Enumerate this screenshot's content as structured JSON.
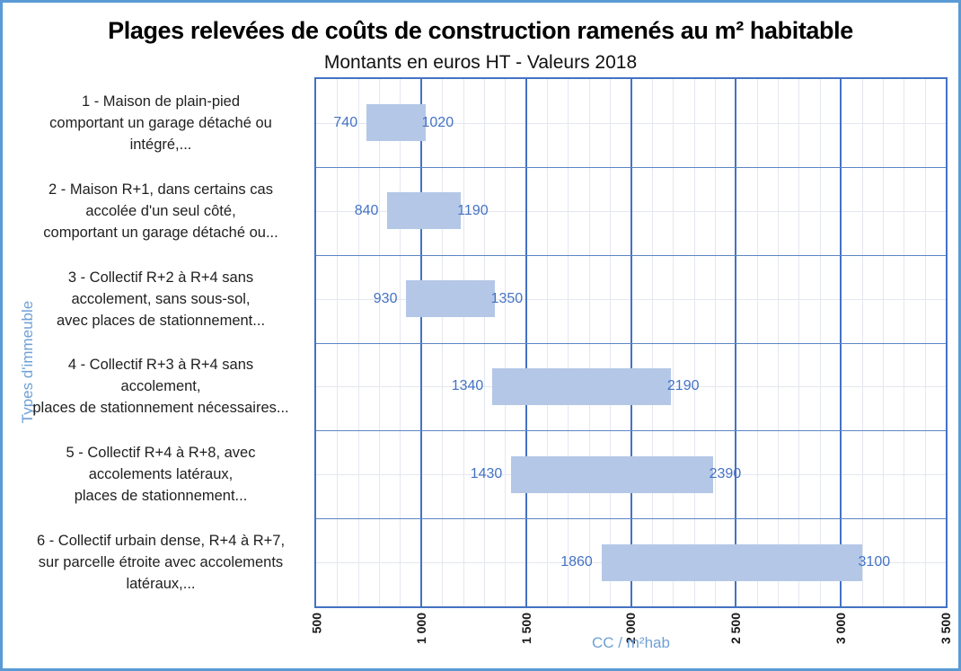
{
  "chart": {
    "title": "Plages relevées de coûts de construction ramenés au m² habitable",
    "subtitle": "Montants en euros HT - Valeurs 2018",
    "x_axis_title": "CC / m²hab",
    "y_axis_title": "Types d'immeuble"
  },
  "chart_data": {
    "type": "bar",
    "subtype": "horizontal-floating-range",
    "title": "Plages relevées de coûts de construction ramenés au m² habitable",
    "subtitle": "Montants en euros HT - Valeurs 2018",
    "xlabel": "CC / m²hab",
    "ylabel": "Types d'immeuble",
    "x_axis": {
      "min": 500,
      "max": 3500,
      "major_unit": 500,
      "minor_unit": 100,
      "tick_labels": [
        "500",
        "1 000",
        "1 500",
        "2 000",
        "2 500",
        "3 000",
        "3 500"
      ],
      "tick_rotation_deg": -90
    },
    "grid": {
      "major_vertical": true,
      "minor_vertical": true,
      "row_separators": true,
      "row_center_minor_horizontal": true
    },
    "legend": "none",
    "categories": [
      {
        "lines": [
          "1 - Maison de plain-pied",
          "comportant un garage détaché ou",
          "intégré,..."
        ],
        "min": 740,
        "max": 1020
      },
      {
        "lines": [
          "2 - Maison R+1, dans certains cas",
          "accolée d'un seul côté,",
          "comportant un garage détaché ou..."
        ],
        "min": 840,
        "max": 1190
      },
      {
        "lines": [
          "3 - Collectif R+2 à R+4 sans",
          "accolement, sans sous-sol,",
          "avec places de stationnement..."
        ],
        "min": 930,
        "max": 1350
      },
      {
        "lines": [
          "4 - Collectif R+3 à R+4 sans",
          "accolement,",
          "places de stationnement nécessaires..."
        ],
        "min": 1340,
        "max": 2190
      },
      {
        "lines": [
          "5 - Collectif R+4 à R+8, avec",
          "accolements latéraux,",
          "places de stationnement..."
        ],
        "min": 1430,
        "max": 2390
      },
      {
        "lines": [
          "6 - Collectif urbain dense, R+4 à R+7,",
          "sur parcelle étroite avec accolements",
          "latéraux,..."
        ],
        "min": 1860,
        "max": 3100
      }
    ],
    "style": {
      "bar_fill": "#B4C7E7",
      "value_label_color": "#4472C4",
      "major_gridline_color": "#4472C4",
      "minor_gridline_color": "#E3E7EF",
      "row_separator_color": "#5C85C4",
      "plot_border_color": "#4472C4",
      "outer_border_color": "#5B9BD5",
      "axis_title_color": "#6FA0D6",
      "tick_label_color": "#1A1A1A",
      "category_label_color": "#1F1F1F",
      "background": "#FFFFFF"
    }
  }
}
